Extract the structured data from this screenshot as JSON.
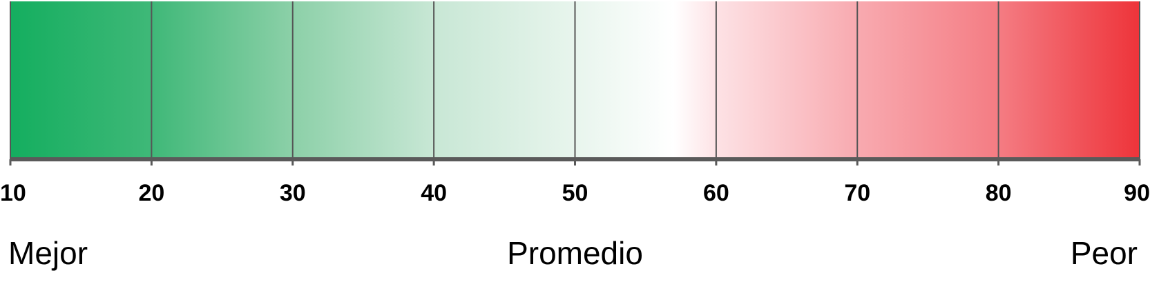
{
  "chart_data": {
    "type": "heatmap",
    "orientation": "horizontal",
    "x": [
      10,
      20,
      30,
      40,
      50,
      60,
      70,
      80,
      90
    ],
    "tick_labels": [
      "10",
      "20",
      "30",
      "40",
      "50",
      "60",
      "70",
      "80",
      "90"
    ],
    "xlim": [
      10,
      90
    ],
    "color_stops": [
      {
        "value": 10,
        "color": "#14ae5f"
      },
      {
        "value": 20,
        "color": "#3fb878"
      },
      {
        "value": 30,
        "color": "#8cd0a8"
      },
      {
        "value": 40,
        "color": "#c8e7d5"
      },
      {
        "value": 50,
        "color": "#e8f5ed"
      },
      {
        "value": 57,
        "color": "#ffffff"
      },
      {
        "value": 60,
        "color": "#fde2e5"
      },
      {
        "value": 70,
        "color": "#f8aab0"
      },
      {
        "value": 80,
        "color": "#f47c83"
      },
      {
        "value": 90,
        "color": "#ee343a"
      }
    ],
    "annotations": [
      {
        "text": "Mejor",
        "x": 10,
        "anchor": "start"
      },
      {
        "text": "Promedio",
        "x": 50,
        "anchor": "middle"
      },
      {
        "text": "Peor",
        "x": 90,
        "anchor": "end"
      }
    ],
    "grid": true,
    "gridline_color": "#555555",
    "axis_color": "#5a5a5a"
  }
}
